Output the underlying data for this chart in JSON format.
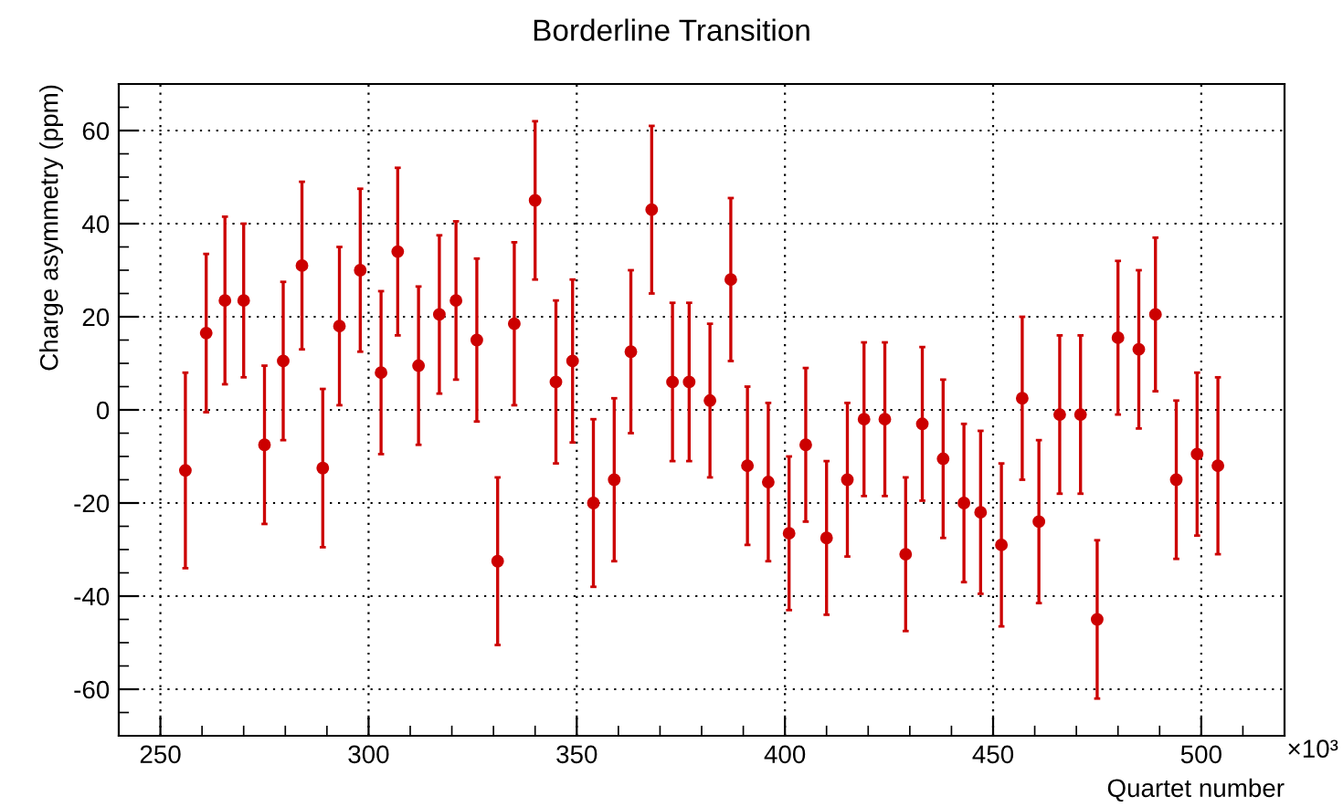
{
  "chart_data": {
    "type": "scatter",
    "title": "Borderline Transition",
    "xlabel": "Quartet number",
    "ylabel": "Charge asymmetry (ppm)",
    "annotations": [
      "×10³"
    ],
    "x": [
      256,
      261,
      265.5,
      270,
      275,
      279.5,
      284,
      289,
      293,
      298,
      303,
      307,
      312,
      317,
      321,
      326,
      331,
      335,
      340,
      345,
      349,
      354,
      359,
      363,
      368,
      373,
      377,
      382,
      387,
      391,
      396,
      401,
      405,
      410,
      415,
      419,
      424,
      429,
      433,
      438,
      443,
      447,
      452,
      457,
      461,
      466,
      471,
      475,
      480,
      485,
      489,
      494,
      499,
      504
    ],
    "series": [
      {
        "color": "#cc0000",
        "values": [
          -13,
          16.5,
          23.5,
          23.5,
          -7.5,
          10.5,
          31,
          -12.5,
          18,
          30,
          8,
          34,
          9.5,
          20.5,
          23.5,
          15,
          -32.5,
          18.5,
          45,
          6,
          10.5,
          -20,
          -15,
          12.5,
          43,
          6,
          6,
          2,
          28,
          -12,
          -15.5,
          -26.5,
          -7.5,
          -27.5,
          -15,
          -2,
          -2,
          -31,
          -3,
          -10.5,
          -20,
          -22,
          -29,
          2.5,
          -24,
          -1,
          -1,
          -45,
          15.5,
          13,
          20.5,
          -15,
          -9.5,
          -12
        ],
        "errors": [
          21,
          17,
          18,
          16.5,
          17,
          17,
          18,
          17,
          17,
          17.5,
          17.5,
          18,
          17,
          17,
          17,
          17.5,
          18,
          17.5,
          17,
          17.5,
          17.5,
          18,
          17.5,
          17.5,
          18,
          17,
          17,
          16.5,
          17.5,
          17,
          17,
          16.5,
          16.5,
          16.5,
          16.5,
          16.5,
          16.5,
          16.5,
          16.5,
          17,
          17,
          17.5,
          17.5,
          17.5,
          17.5,
          17,
          17,
          17,
          16.5,
          17,
          16.5,
          17,
          17.5,
          19
        ]
      }
    ],
    "xlim": [
      240,
      520
    ],
    "ylim": [
      -70,
      70
    ],
    "xticks": [
      250,
      300,
      350,
      400,
      450,
      500
    ],
    "yticks": [
      -60,
      -40,
      -20,
      0,
      20,
      40,
      60
    ],
    "grid": true,
    "marker": "circle"
  }
}
